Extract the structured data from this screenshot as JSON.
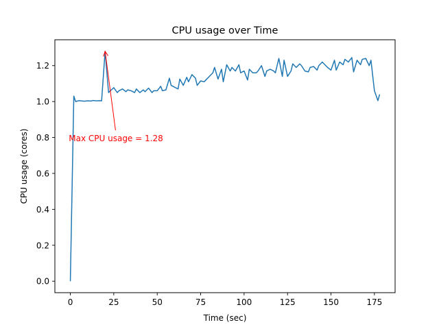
{
  "chart_data": {
    "type": "line",
    "title": "CPU usage over Time",
    "xlabel": "Time (sec)",
    "ylabel": "CPU usage (cores)",
    "xlim": [
      -8.9,
      186.9
    ],
    "ylim": [
      -0.064,
      1.344
    ],
    "x_ticks": [
      0,
      25,
      50,
      75,
      100,
      125,
      150,
      175
    ],
    "x_tick_labels": [
      "0",
      "25",
      "50",
      "75",
      "100",
      "125",
      "150",
      "175"
    ],
    "y_ticks": [
      0.0,
      0.2,
      0.4,
      0.6,
      0.8,
      1.0,
      1.2
    ],
    "y_tick_labels": [
      "0.0",
      "0.2",
      "0.4",
      "0.6",
      "0.8",
      "1.0",
      "1.2"
    ],
    "grid": false,
    "series": [
      {
        "color": "#1f77b4",
        "x": [
          0,
          2,
          3,
          5,
          7,
          8,
          10,
          12,
          13,
          15,
          17,
          18,
          20,
          22,
          23,
          25,
          27,
          28,
          30,
          32,
          33,
          35,
          37,
          38,
          40,
          42,
          43,
          45,
          47,
          48,
          50,
          52,
          53,
          55,
          57,
          58,
          60,
          62,
          63,
          65,
          67,
          68,
          70,
          72,
          73,
          75,
          77,
          78,
          80,
          82,
          83,
          85,
          87,
          88,
          90,
          92,
          93,
          95,
          97,
          98,
          100,
          102,
          103,
          105,
          107,
          108,
          110,
          112,
          113,
          115,
          117,
          118,
          120,
          122,
          123,
          125,
          127,
          128,
          130,
          132,
          133,
          135,
          137,
          138,
          140,
          142,
          143,
          145,
          147,
          148,
          150,
          152,
          153,
          155,
          157,
          158,
          160,
          162,
          163,
          165,
          167,
          168,
          170,
          172,
          173,
          175,
          177,
          178
        ],
        "y": [
          0.0,
          1.03,
          1.0,
          1.005,
          1.003,
          1.002,
          1.004,
          1.003,
          1.006,
          1.004,
          1.005,
          1.004,
          1.28,
          1.05,
          1.06,
          1.077,
          1.05,
          1.06,
          1.07,
          1.055,
          1.065,
          1.06,
          1.05,
          1.07,
          1.05,
          1.065,
          1.055,
          1.075,
          1.05,
          1.06,
          1.06,
          1.085,
          1.06,
          1.065,
          1.13,
          1.09,
          1.08,
          1.07,
          1.125,
          1.09,
          1.135,
          1.11,
          1.15,
          1.13,
          1.09,
          1.115,
          1.11,
          1.12,
          1.14,
          1.16,
          1.19,
          1.125,
          1.18,
          1.11,
          1.205,
          1.17,
          1.19,
          1.17,
          1.205,
          1.16,
          1.17,
          1.12,
          1.18,
          1.16,
          1.16,
          1.17,
          1.2,
          1.14,
          1.17,
          1.18,
          1.17,
          1.16,
          1.24,
          1.14,
          1.23,
          1.14,
          1.17,
          1.21,
          1.19,
          1.21,
          1.2,
          1.17,
          1.165,
          1.19,
          1.195,
          1.175,
          1.2,
          1.22,
          1.2,
          1.19,
          1.175,
          1.23,
          1.175,
          1.22,
          1.205,
          1.235,
          1.22,
          1.245,
          1.165,
          1.23,
          1.205,
          1.235,
          1.24,
          1.2,
          1.23,
          1.06,
          1.005,
          1.04
        ]
      }
    ],
    "annotation": {
      "text": "Max CPU usage = 1.28",
      "color": "#ff0000",
      "point": [
        20,
        1.28
      ],
      "text_anchor_point": [
        26,
        0.84
      ]
    }
  }
}
